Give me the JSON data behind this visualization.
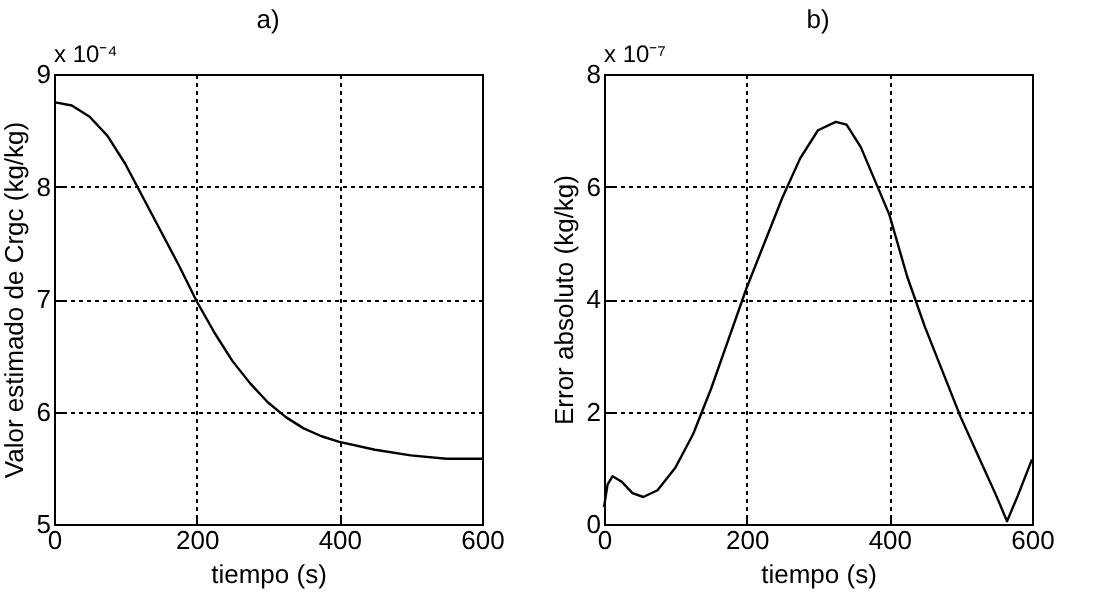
{
  "chart_data": [
    {
      "type": "line",
      "title": "a)",
      "xlabel": "tiempo (s)",
      "ylabel": "Valor estimado de Crgc (kg/kg)",
      "annotations": [
        "x 10⁻⁴"
      ],
      "x": [
        0,
        25,
        50,
        75,
        100,
        125,
        150,
        175,
        200,
        225,
        250,
        275,
        300,
        325,
        350,
        375,
        400,
        450,
        500,
        550,
        600
      ],
      "series": [
        {
          "color": "#000000",
          "values": [
            8.75,
            8.72,
            8.62,
            8.45,
            8.2,
            7.9,
            7.6,
            7.3,
            6.98,
            6.7,
            6.45,
            6.25,
            6.08,
            5.95,
            5.85,
            5.78,
            5.73,
            5.66,
            5.61,
            5.58,
            5.58
          ]
        }
      ],
      "xlim": [
        0,
        600
      ],
      "xticks": [
        0,
        200,
        400,
        600
      ],
      "ylim": [
        5,
        9
      ],
      "yticks": [
        5,
        6,
        7,
        8,
        9
      ],
      "grid": true
    },
    {
      "type": "line",
      "title": "b)",
      "xlabel": "tiempo (s)",
      "ylabel": "Error absoluto (kg/kg)",
      "annotations": [
        "x 10⁻⁷"
      ],
      "x": [
        0,
        5,
        12,
        25,
        40,
        55,
        75,
        100,
        125,
        150,
        175,
        200,
        225,
        250,
        275,
        300,
        325,
        340,
        360,
        380,
        400,
        425,
        450,
        475,
        500,
        525,
        550,
        565,
        580,
        600
      ],
      "series": [
        {
          "color": "#000000",
          "values": [
            0.3,
            0.7,
            0.85,
            0.75,
            0.55,
            0.48,
            0.6,
            1.0,
            1.6,
            2.4,
            3.3,
            4.2,
            5.0,
            5.8,
            6.5,
            7.0,
            7.15,
            7.1,
            6.7,
            6.1,
            5.5,
            4.4,
            3.5,
            2.7,
            1.9,
            1.2,
            0.5,
            0.05,
            0.5,
            1.15
          ]
        }
      ],
      "xlim": [
        0,
        600
      ],
      "xticks": [
        0,
        200,
        400,
        600
      ],
      "ylim": [
        0,
        8
      ],
      "yticks": [
        0,
        2,
        4,
        6,
        8
      ],
      "grid": true
    }
  ]
}
